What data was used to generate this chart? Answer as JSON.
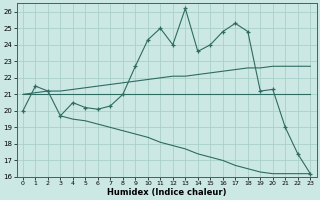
{
  "xlabel": "Humidex (Indice chaleur)",
  "xlim": [
    -0.5,
    23.5
  ],
  "ylim": [
    16,
    26.5
  ],
  "yticks": [
    16,
    17,
    18,
    19,
    20,
    21,
    22,
    23,
    24,
    25,
    26
  ],
  "xticks": [
    0,
    1,
    2,
    3,
    4,
    5,
    6,
    7,
    8,
    9,
    10,
    11,
    12,
    13,
    14,
    15,
    16,
    17,
    18,
    19,
    20,
    21,
    22,
    23
  ],
  "bg_color": "#cce8e4",
  "line_color": "#2e6b60",
  "grid_color": "#aacfca",
  "line_zigzag_x": [
    0,
    1,
    2,
    3,
    4,
    5,
    6,
    7,
    8,
    9,
    10,
    11,
    12,
    13,
    14,
    15,
    16,
    17,
    18,
    19,
    20,
    21,
    22,
    23
  ],
  "line_zigzag_y": [
    20.0,
    21.5,
    21.2,
    19.7,
    20.5,
    20.2,
    20.1,
    20.3,
    21.0,
    22.7,
    24.3,
    25.0,
    24.0,
    26.2,
    23.6,
    24.0,
    24.8,
    25.3,
    24.8,
    21.2,
    21.3,
    19.0,
    17.4,
    16.2
  ],
  "line_flat_x": [
    0,
    1,
    2,
    3,
    4,
    5,
    6,
    7,
    8,
    9,
    10,
    11,
    12,
    13,
    14,
    15,
    16,
    17,
    18,
    19,
    20,
    21,
    22,
    23
  ],
  "line_flat_y": [
    21.0,
    21.0,
    21.0,
    21.0,
    21.0,
    21.0,
    21.0,
    21.0,
    21.0,
    21.0,
    21.0,
    21.0,
    21.0,
    21.0,
    21.0,
    21.0,
    21.0,
    21.0,
    21.0,
    21.0,
    21.0,
    21.0,
    21.0,
    21.0
  ],
  "line_rise_x": [
    0,
    1,
    2,
    3,
    4,
    5,
    6,
    7,
    8,
    9,
    10,
    11,
    12,
    13,
    14,
    15,
    16,
    17,
    18,
    19,
    20,
    21,
    22,
    23
  ],
  "line_rise_y": [
    21.0,
    21.1,
    21.2,
    21.2,
    21.3,
    21.4,
    21.5,
    21.6,
    21.7,
    21.8,
    21.9,
    22.0,
    22.1,
    22.1,
    22.2,
    22.3,
    22.4,
    22.5,
    22.6,
    22.6,
    22.7,
    22.7,
    22.7,
    22.7
  ],
  "line_drop_x": [
    3,
    4,
    5,
    6,
    7,
    8,
    9,
    10,
    11,
    12,
    13,
    14,
    15,
    16,
    17,
    18,
    19,
    20,
    21,
    22,
    23
  ],
  "line_drop_y": [
    19.7,
    19.5,
    19.4,
    19.2,
    19.0,
    18.8,
    18.6,
    18.4,
    18.1,
    17.9,
    17.7,
    17.4,
    17.2,
    17.0,
    16.7,
    16.5,
    16.3,
    16.2,
    16.2,
    16.2,
    16.2
  ]
}
